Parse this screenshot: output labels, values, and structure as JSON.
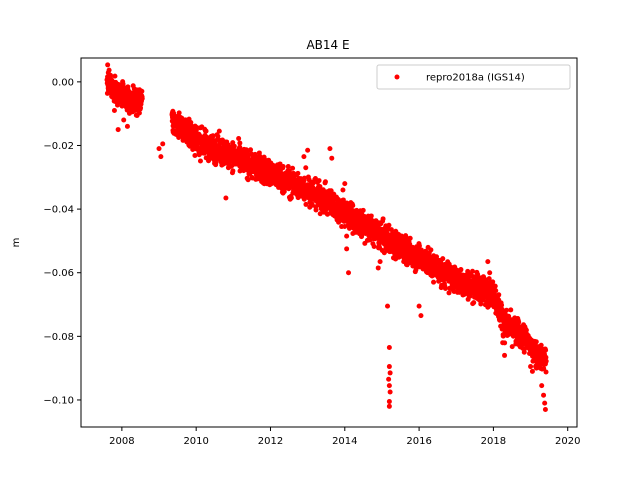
{
  "chart_data": {
    "type": "scatter",
    "title": "AB14 E",
    "xlabel": "",
    "ylabel": "m",
    "xlim": [
      2006.9,
      2020.25
    ],
    "ylim": [
      -0.1085,
      0.0075
    ],
    "xticks": [
      2008,
      2010,
      2012,
      2014,
      2016,
      2018,
      2020
    ],
    "xtick_labels": [
      "2008",
      "2010",
      "2012",
      "2014",
      "2016",
      "2018",
      "2020"
    ],
    "yticks": [
      0.0,
      -0.02,
      -0.04,
      -0.06,
      -0.08,
      -0.1
    ],
    "ytick_labels": [
      "0.00",
      "−0.02",
      "−0.04",
      "−0.06",
      "−0.08",
      "−0.10"
    ],
    "grid": false,
    "legend": {
      "position": "top-right",
      "entries": [
        "repro2018a (IGS14)"
      ]
    },
    "series": [
      {
        "name": "repro2018a (IGS14)",
        "color": "#ff0000",
        "marker": "circle",
        "trend": [
          [
            2007.6,
            0.0005
          ],
          [
            2007.75,
            -0.002
          ],
          [
            2008.0,
            -0.004
          ],
          [
            2008.25,
            -0.006
          ],
          [
            2008.5,
            -0.006
          ],
          [
            2009.4,
            -0.0125
          ],
          [
            2009.7,
            -0.015
          ],
          [
            2010.0,
            -0.0185
          ],
          [
            2010.5,
            -0.021
          ],
          [
            2011.0,
            -0.0235
          ],
          [
            2011.5,
            -0.026
          ],
          [
            2012.0,
            -0.029
          ],
          [
            2012.5,
            -0.0315
          ],
          [
            2013.0,
            -0.034
          ],
          [
            2013.5,
            -0.0375
          ],
          [
            2014.0,
            -0.041
          ],
          [
            2014.5,
            -0.045
          ],
          [
            2015.0,
            -0.0485
          ],
          [
            2015.5,
            -0.052
          ],
          [
            2016.0,
            -0.055
          ],
          [
            2016.5,
            -0.059
          ],
          [
            2017.0,
            -0.0625
          ],
          [
            2017.5,
            -0.0645
          ],
          [
            2018.0,
            -0.0665
          ],
          [
            2018.3,
            -0.076
          ],
          [
            2018.6,
            -0.0785
          ],
          [
            2018.9,
            -0.081
          ],
          [
            2019.1,
            -0.085
          ],
          [
            2019.35,
            -0.087
          ]
        ],
        "outliers": [
          [
            2007.8,
            -0.009
          ],
          [
            2007.9,
            -0.015
          ],
          [
            2008.05,
            -0.012
          ],
          [
            2008.15,
            -0.014
          ],
          [
            2009.0,
            -0.021
          ],
          [
            2009.05,
            -0.0235
          ],
          [
            2009.1,
            -0.0195
          ],
          [
            2010.8,
            -0.0365
          ],
          [
            2012.3,
            -0.031
          ],
          [
            2012.35,
            -0.0345
          ],
          [
            2012.9,
            -0.0235
          ],
          [
            2013.0,
            -0.0215
          ],
          [
            2012.95,
            -0.027
          ],
          [
            2013.6,
            -0.021
          ],
          [
            2013.65,
            -0.024
          ],
          [
            2013.9,
            -0.0385
          ],
          [
            2014.0,
            -0.032
          ],
          [
            2013.95,
            -0.034
          ],
          [
            2014.05,
            -0.0525
          ],
          [
            2014.1,
            -0.06
          ],
          [
            2014.05,
            -0.0485
          ],
          [
            2014.95,
            -0.0565
          ],
          [
            2014.9,
            -0.0585
          ],
          [
            2015.15,
            -0.0705
          ],
          [
            2015.2,
            -0.0835
          ],
          [
            2015.2,
            -0.0895
          ],
          [
            2015.22,
            -0.0915
          ],
          [
            2015.18,
            -0.0935
          ],
          [
            2015.2,
            -0.0955
          ],
          [
            2015.22,
            -0.0975
          ],
          [
            2015.2,
            -0.1005
          ],
          [
            2015.2,
            -0.102
          ],
          [
            2016.0,
            -0.0705
          ],
          [
            2016.05,
            -0.0735
          ],
          [
            2016.25,
            -0.0545
          ],
          [
            2016.3,
            -0.057
          ],
          [
            2017.85,
            -0.0565
          ],
          [
            2017.9,
            -0.06
          ],
          [
            2017.5,
            -0.064
          ],
          [
            2018.2,
            -0.0725
          ],
          [
            2018.25,
            -0.082
          ],
          [
            2018.3,
            -0.086
          ],
          [
            2019.0,
            -0.0895
          ],
          [
            2019.05,
            -0.091
          ],
          [
            2019.3,
            -0.0955
          ],
          [
            2019.35,
            -0.0985
          ],
          [
            2019.38,
            -0.101
          ],
          [
            2019.4,
            -0.103
          ]
        ]
      }
    ]
  }
}
